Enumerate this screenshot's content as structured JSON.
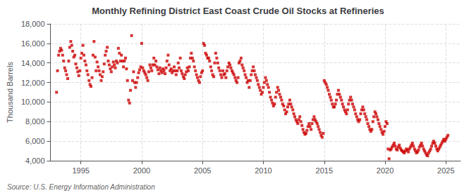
{
  "chart_data": {
    "type": "scatter",
    "title": "Monthly Refining District East Coast Crude Oil Stocks at Refineries",
    "ylabel": "Thousand Barrels",
    "source": "Source: U.S. Energy Information Administration",
    "color": "#cc0000",
    "marker": "square",
    "grid": true,
    "xlim": [
      1992.5,
      2026.2
    ],
    "xticks": [
      1995,
      2000,
      2005,
      2010,
      2015,
      2020,
      2025
    ],
    "ylim": [
      4000,
      18000
    ],
    "yticks": [
      {
        "value": 4000,
        "label": "4,000"
      },
      {
        "value": 6000,
        "label": "6,000"
      },
      {
        "value": 8000,
        "label": "8,000"
      },
      {
        "value": 10000,
        "label": "10,000"
      },
      {
        "value": 12000,
        "label": "12,000"
      },
      {
        "value": 14000,
        "label": "14,000"
      },
      {
        "value": 16000,
        "label": "16,000"
      },
      {
        "value": 18000,
        "label": "18,000"
      }
    ],
    "x": [
      1993.0,
      1993.08,
      1993.17,
      1993.25,
      1993.33,
      1993.42,
      1993.5,
      1993.58,
      1993.67,
      1993.75,
      1993.83,
      1993.92,
      1994.0,
      1994.08,
      1994.17,
      1994.25,
      1994.33,
      1994.42,
      1994.5,
      1994.58,
      1994.67,
      1994.75,
      1994.83,
      1994.92,
      1995.0,
      1995.08,
      1995.17,
      1995.25,
      1995.33,
      1995.42,
      1995.5,
      1995.58,
      1995.67,
      1995.75,
      1995.83,
      1995.92,
      1996.0,
      1996.08,
      1996.17,
      1996.25,
      1996.33,
      1996.42,
      1996.5,
      1996.58,
      1996.67,
      1996.75,
      1996.83,
      1996.92,
      1997.0,
      1997.08,
      1997.17,
      1997.25,
      1997.33,
      1997.42,
      1997.5,
      1997.58,
      1997.67,
      1997.75,
      1997.83,
      1997.92,
      1998.0,
      1998.08,
      1998.17,
      1998.25,
      1998.33,
      1998.42,
      1998.5,
      1998.58,
      1998.67,
      1998.75,
      1998.83,
      1998.92,
      1999.0,
      1999.08,
      1999.17,
      1999.25,
      1999.33,
      1999.42,
      1999.5,
      1999.58,
      1999.67,
      1999.75,
      1999.83,
      1999.92,
      2000.0,
      2000.08,
      2000.17,
      2000.25,
      2000.33,
      2000.42,
      2000.5,
      2000.58,
      2000.67,
      2000.75,
      2000.83,
      2000.92,
      2001.0,
      2001.08,
      2001.17,
      2001.25,
      2001.33,
      2001.42,
      2001.5,
      2001.58,
      2001.67,
      2001.75,
      2001.83,
      2001.92,
      2002.0,
      2002.08,
      2002.17,
      2002.25,
      2002.33,
      2002.42,
      2002.5,
      2002.58,
      2002.67,
      2002.75,
      2002.83,
      2002.92,
      2003.0,
      2003.08,
      2003.17,
      2003.25,
      2003.33,
      2003.42,
      2003.5,
      2003.58,
      2003.67,
      2003.75,
      2003.83,
      2003.92,
      2004.0,
      2004.08,
      2004.17,
      2004.25,
      2004.33,
      2004.42,
      2004.5,
      2004.58,
      2004.67,
      2004.75,
      2004.83,
      2004.92,
      2005.0,
      2005.08,
      2005.17,
      2005.25,
      2005.33,
      2005.42,
      2005.5,
      2005.58,
      2005.67,
      2005.75,
      2005.83,
      2005.92,
      2006.0,
      2006.08,
      2006.17,
      2006.25,
      2006.33,
      2006.42,
      2006.5,
      2006.58,
      2006.67,
      2006.75,
      2006.83,
      2006.92,
      2007.0,
      2007.08,
      2007.17,
      2007.25,
      2007.33,
      2007.42,
      2007.5,
      2007.58,
      2007.67,
      2007.75,
      2007.83,
      2007.92,
      2008.0,
      2008.08,
      2008.17,
      2008.25,
      2008.33,
      2008.42,
      2008.5,
      2008.58,
      2008.67,
      2008.75,
      2008.83,
      2008.92,
      2009.0,
      2009.08,
      2009.17,
      2009.25,
      2009.33,
      2009.42,
      2009.5,
      2009.58,
      2009.67,
      2009.75,
      2009.83,
      2009.92,
      2010.0,
      2010.08,
      2010.17,
      2010.25,
      2010.33,
      2010.42,
      2010.5,
      2010.58,
      2010.67,
      2010.75,
      2010.83,
      2010.92,
      2011.0,
      2011.08,
      2011.17,
      2011.25,
      2011.33,
      2011.42,
      2011.5,
      2011.58,
      2011.67,
      2011.75,
      2011.83,
      2011.92,
      2012.0,
      2012.08,
      2012.17,
      2012.25,
      2012.33,
      2012.42,
      2012.5,
      2012.58,
      2012.67,
      2012.75,
      2012.83,
      2012.92,
      2013.0,
      2013.08,
      2013.17,
      2013.25,
      2013.33,
      2013.42,
      2013.5,
      2013.58,
      2013.67,
      2013.75,
      2013.83,
      2013.92,
      2014.0,
      2014.08,
      2014.17,
      2014.25,
      2014.33,
      2014.42,
      2014.5,
      2014.58,
      2014.67,
      2014.75,
      2014.83,
      2014.92,
      2015.0,
      2015.08,
      2015.17,
      2015.25,
      2015.33,
      2015.42,
      2015.5,
      2015.58,
      2015.67,
      2015.75,
      2015.83,
      2015.92,
      2016.0,
      2016.08,
      2016.17,
      2016.25,
      2016.33,
      2016.42,
      2016.5,
      2016.58,
      2016.67,
      2016.75,
      2016.83,
      2016.92,
      2017.0,
      2017.08,
      2017.17,
      2017.25,
      2017.33,
      2017.42,
      2017.5,
      2017.58,
      2017.67,
      2017.75,
      2017.83,
      2017.92,
      2018.0,
      2018.08,
      2018.17,
      2018.25,
      2018.33,
      2018.42,
      2018.5,
      2018.58,
      2018.67,
      2018.75,
      2018.83,
      2018.92,
      2019.0,
      2019.08,
      2019.17,
      2019.25,
      2019.33,
      2019.42,
      2019.5,
      2019.58,
      2019.67,
      2019.75,
      2019.83,
      2019.92,
      2020.0,
      2020.08,
      2020.17,
      2020.25,
      2020.33,
      2020.42,
      2020.5,
      2020.58,
      2020.67,
      2020.75,
      2020.83,
      2020.92,
      2021.0,
      2021.08,
      2021.17,
      2021.25,
      2021.33,
      2021.42,
      2021.5,
      2021.58,
      2021.67,
      2021.75,
      2021.83,
      2021.92,
      2022.0,
      2022.08,
      2022.17,
      2022.25,
      2022.33,
      2022.42,
      2022.5,
      2022.58,
      2022.67,
      2022.75,
      2022.83,
      2022.92,
      2023.0,
      2023.08,
      2023.17,
      2023.25,
      2023.33,
      2023.42,
      2023.5,
      2023.58,
      2023.67,
      2023.75,
      2023.83,
      2023.92,
      2024.0,
      2024.08,
      2024.17,
      2024.25,
      2024.33,
      2024.42,
      2024.5,
      2024.58,
      2024.67,
      2024.75,
      2024.83,
      2024.92,
      2025.0,
      2025.08,
      2025.17
    ],
    "values": [
      11000,
      13200,
      14800,
      15200,
      15500,
      15300,
      14800,
      14200,
      13500,
      13200,
      12800,
      12400,
      14200,
      15600,
      16200,
      15800,
      15200,
      14600,
      14800,
      13900,
      13500,
      13100,
      12700,
      13200,
      14500,
      15000,
      15800,
      14800,
      14200,
      13800,
      13200,
      12800,
      12200,
      11800,
      11600,
      12500,
      14800,
      16200,
      14600,
      13200,
      14100,
      13600,
      13200,
      12800,
      12200,
      12600,
      13100,
      13900,
      14800,
      15200,
      15600,
      14200,
      13800,
      13400,
      13100,
      13600,
      14100,
      13800,
      13500,
      14200,
      14000,
      15500,
      15000,
      14200,
      14800,
      14200,
      13600,
      14200,
      14500,
      13400,
      12200,
      10200,
      9900,
      11200,
      16800,
      12200,
      13100,
      12000,
      11500,
      12000,
      12500,
      13000,
      13300,
      13600,
      16000,
      13500,
      13200,
      13000,
      12800,
      12500,
      12200,
      13100,
      13800,
      13500,
      13200,
      13800,
      14500,
      13800,
      14200,
      13600,
      13300,
      12900,
      13500,
      13200,
      13000,
      13400,
      13200,
      12900,
      13500,
      14200,
      14800,
      13800,
      13200,
      13400,
      13000,
      13200,
      13600,
      13200,
      12800,
      13200,
      14000,
      13500,
      14500,
      13200,
      12900,
      12600,
      12400,
      12800,
      13100,
      13500,
      13200,
      13600,
      14500,
      15000,
      14500,
      14200,
      13600,
      13200,
      12800,
      12500,
      12200,
      12000,
      12600,
      13000,
      13200,
      16000,
      15800,
      15000,
      14800,
      14500,
      14500,
      14200,
      13600,
      13200,
      12800,
      12600,
      14000,
      15000,
      14500,
      14000,
      13500,
      13200,
      12800,
      12500,
      13200,
      12800,
      12900,
      12500,
      13200,
      13600,
      14000,
      13800,
      13500,
      13200,
      13000,
      12800,
      12500,
      12200,
      12000,
      12500,
      14000,
      14200,
      14500,
      13800,
      13500,
      13200,
      12800,
      12500,
      12000,
      12200,
      11500,
      12200,
      12800,
      13200,
      13600,
      13200,
      12800,
      12500,
      12200,
      11800,
      11500,
      11200,
      10800,
      11000,
      11500,
      12000,
      12500,
      12200,
      11800,
      11500,
      11000,
      10500,
      10200,
      9900,
      9600,
      9800,
      10500,
      11000,
      11500,
      11200,
      10800,
      10500,
      10200,
      9800,
      9600,
      9200,
      8800,
      9000,
      9500,
      9800,
      10200,
      9800,
      9500,
      9200,
      8800,
      8500,
      8200,
      8000,
      7800,
      8200,
      8500,
      8000,
      7600,
      7200,
      6900,
      6700,
      6800,
      7100,
      7500,
      7800,
      7500,
      7200,
      7800,
      8200,
      8500,
      8200,
      8000,
      7800,
      7500,
      7200,
      6900,
      6600,
      6400,
      6800,
      12200,
      12000,
      11800,
      11500,
      11200,
      10800,
      10500,
      10200,
      9800,
      9500,
      9500,
      9800,
      10200,
      10800,
      11200,
      10800,
      10500,
      10200,
      9800,
      9500,
      9200,
      9000,
      8800,
      9200,
      9800,
      10200,
      10500,
      10200,
      9800,
      9500,
      9200,
      8800,
      8500,
      8200,
      8000,
      8200,
      8800,
      9200,
      9500,
      9200,
      8800,
      8500,
      8200,
      7800,
      7500,
      7200,
      7000,
      7200,
      8000,
      8500,
      9000,
      8800,
      8500,
      8200,
      7800,
      7500,
      7200,
      6900,
      6700,
      7000,
      7500,
      8000,
      7800,
      5200,
      4200,
      5100,
      5200,
      5400,
      5600,
      5800,
      5500,
      5200,
      5100,
      5400,
      5600,
      5300,
      5100,
      5000,
      4900,
      4800,
      5000,
      5200,
      5100,
      4900,
      5200,
      5400,
      5600,
      5800,
      5500,
      5200,
      5000,
      4800,
      4900,
      5100,
      5400,
      5600,
      5800,
      5500,
      5200,
      5000,
      4800,
      4600,
      4500,
      4800,
      5000,
      5200,
      5500,
      5800,
      6000,
      5800,
      5500,
      5200,
      5000,
      5200,
      5400,
      5600,
      5800,
      6000,
      6200,
      6000,
      6200,
      6400,
      6600
    ]
  }
}
